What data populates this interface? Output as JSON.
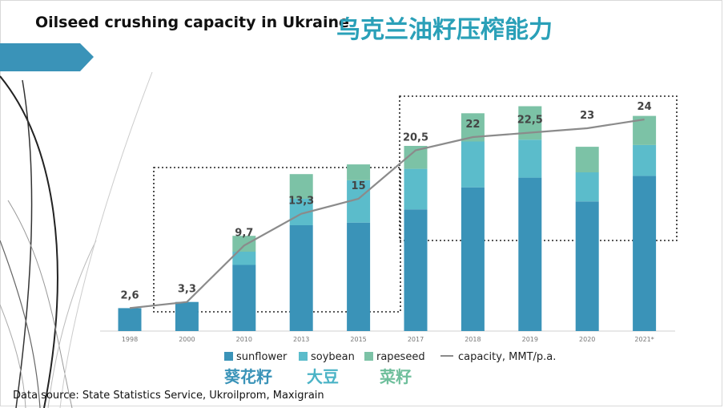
{
  "title_en": "Oilseed crushing capacity in Ukraine",
  "title_cn": "乌克兰油籽压榨能力",
  "source": "Data source: State Statistics Service, Ukroilprom, Maxigrain",
  "colors": {
    "sunflower": "#3a93b8",
    "soybean": "#5bbccb",
    "rapeseed": "#7cc2a6",
    "capacity": "#8b8b8b",
    "banner": "#3a93b8",
    "cn_sunflower": "#3a93b8",
    "cn_soybean": "#4ab3c6",
    "cn_rapeseed": "#6fbf9c"
  },
  "cn_legend": {
    "sunflower": "葵花籽",
    "soybean": "大豆",
    "rapeseed": "菜籽"
  },
  "chart_data": {
    "type": "bar",
    "stacked": true,
    "categories": [
      "1998",
      "2000",
      "2010",
      "2013",
      "2015",
      "2017",
      "2018",
      "2019",
      "2020",
      "2021*"
    ],
    "series": [
      {
        "name": "sunflower",
        "values": [
          2.6,
          3.3,
          7.5,
          12.0,
          12.3,
          13.8,
          16.3,
          17.4,
          14.7,
          17.6
        ]
      },
      {
        "name": "soybean",
        "values": [
          0.0,
          0.0,
          1.5,
          3.0,
          4.8,
          4.6,
          5.2,
          4.3,
          3.3,
          3.5
        ]
      },
      {
        "name": "rapeseed",
        "values": [
          0.0,
          0.0,
          1.8,
          2.8,
          1.8,
          2.6,
          3.2,
          3.8,
          2.9,
          3.3
        ]
      }
    ],
    "line": {
      "name": "capacity, MMT/p.a.",
      "values": [
        2.6,
        3.3,
        9.7,
        13.3,
        15,
        20.5,
        22,
        22.5,
        23,
        24
      ],
      "labels": [
        "2,6",
        "3,3",
        "9,7",
        "13,3",
        "15",
        "20,5",
        "22",
        "22,5",
        "23",
        "24"
      ]
    },
    "ylim": [
      0,
      26
    ],
    "legend": [
      "sunflower",
      "soybean",
      "rapeseed",
      "capacity, MMT/p.a."
    ],
    "legend_position": "bottom"
  }
}
